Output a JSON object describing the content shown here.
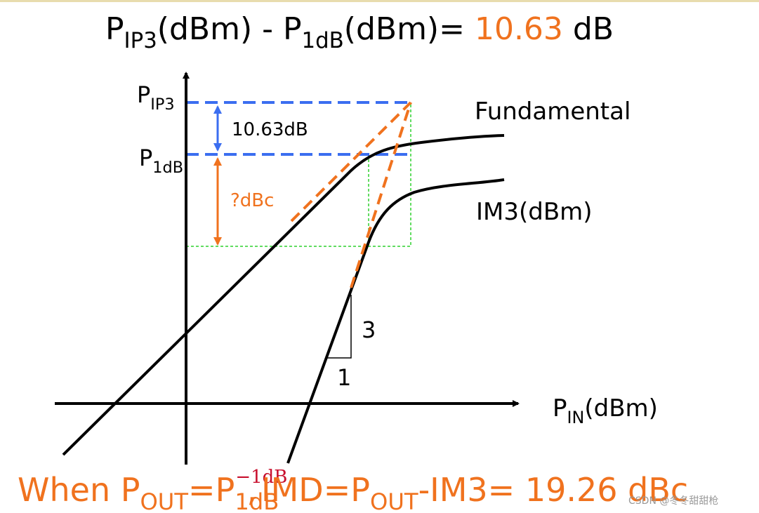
{
  "title": {
    "p1": "P",
    "p1_sub": "IP3",
    "mid": "(dBm) - P",
    "p2_sub": "1dB",
    "eq": "(dBm)= ",
    "value": "10.63",
    "unit": " dB"
  },
  "labels": {
    "pip3": {
      "main": "P",
      "sub": "IP3"
    },
    "p1db": {
      "main": "P",
      "sub": "1dB"
    },
    "gap": "10.63dB",
    "dbc": "?dBc",
    "fundamental": "Fundamental",
    "im3": "IM3(dBm)",
    "slope_rise": "3",
    "slope_run": "1",
    "pin": {
      "main": "P",
      "sub": "IN",
      "rest": "(dBm)"
    }
  },
  "footer": {
    "a": "When P",
    "a_sub": "OUT",
    "b": "=P",
    "b_sub": "1dB",
    "b_sup": "−1dB",
    "c": ",",
    "d": "IMD=P",
    "d_sub": "OUT",
    "e": "-IM3= 19.26 dBc"
  },
  "watermark": "CSDN @冬冬甜甜枪"
}
